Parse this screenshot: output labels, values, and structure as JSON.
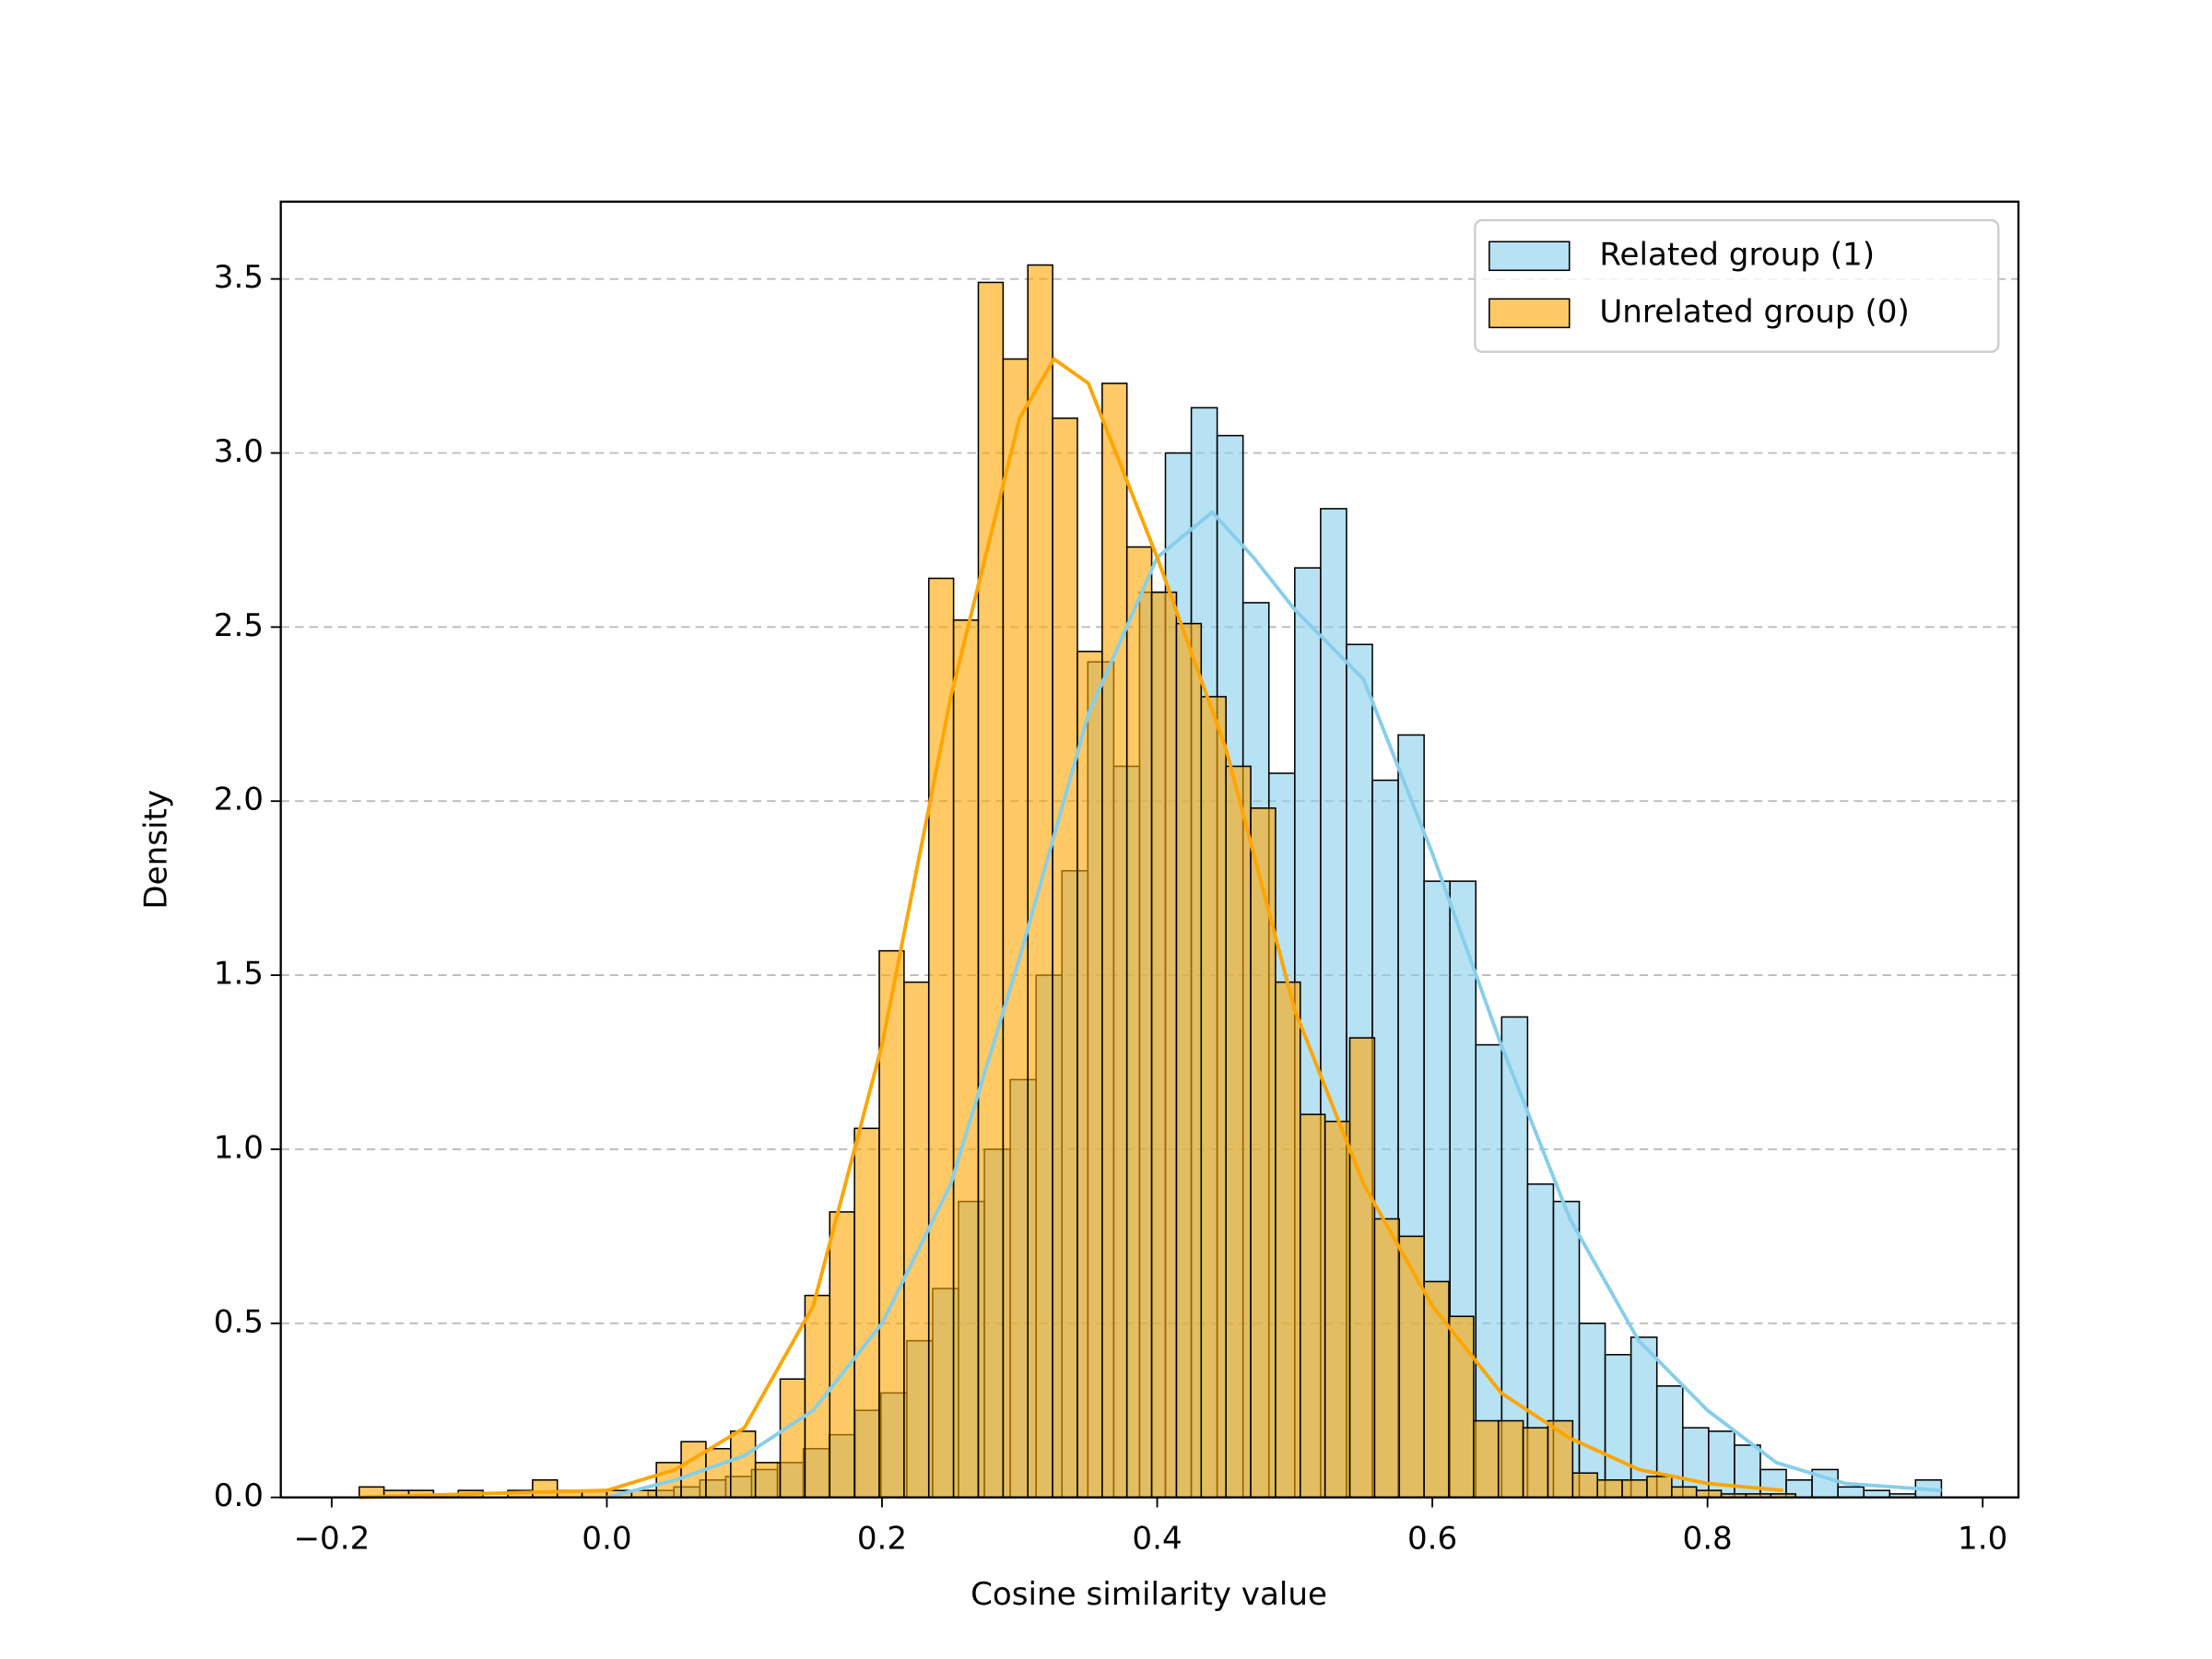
{
  "chart_data": {
    "type": "histogram",
    "xlabel": "Cosine similarity value",
    "ylabel": "Density",
    "xlim": [
      -0.237,
      1.026
    ],
    "ylim": [
      0,
      3.722
    ],
    "xticks": [
      {
        "value": -0.2,
        "label": "−0.2"
      },
      {
        "value": 0,
        "label": "0.0"
      },
      0.2,
      0.4,
      0.6,
      0.8,
      {
        "value": 1,
        "label": "1.0"
      }
    ],
    "yticks": [
      {
        "value": 0,
        "label": "0.0"
      },
      0.5,
      {
        "value": 1,
        "label": "1.0"
      },
      1.5,
      {
        "value": 2,
        "label": "2.0"
      },
      2.5,
      {
        "value": 3,
        "label": "3.0"
      },
      3.5
    ],
    "grid": "y",
    "legend": "upper right",
    "series": [
      {
        "name": "Related group (1)",
        "color": "#87ceeb",
        "line_color": "#87ceeb",
        "bins": [
          0.03,
          0.0488,
          0.0676,
          0.0864,
          0.1052,
          0.124,
          0.1428,
          0.1616,
          0.1804,
          0.1992,
          0.218,
          0.2368,
          0.2556,
          0.2744,
          0.2932,
          0.312,
          0.3308,
          0.3496,
          0.3684,
          0.3872,
          0.406,
          0.4248,
          0.4436,
          0.4624,
          0.4812,
          0.5,
          0.5188,
          0.5376,
          0.5564,
          0.5752,
          0.594,
          0.6128,
          0.6316,
          0.6504,
          0.6692,
          0.688,
          0.7068,
          0.7256,
          0.7444,
          0.7632,
          0.782,
          0.8008,
          0.8196,
          0.8384,
          0.8572,
          0.876,
          0.8948,
          0.9136,
          0.9324,
          0.9512,
          0.97
        ],
        "values": [
          0.02,
          0.03,
          0.05,
          0.06,
          0.08,
          0.1,
          0.14,
          0.18,
          0.25,
          0.3,
          0.45,
          0.6,
          0.85,
          1.0,
          1.2,
          1.5,
          1.8,
          2.4,
          2.1,
          2.6,
          3.0,
          3.13,
          3.05,
          2.57,
          2.08,
          2.67,
          2.84,
          2.45,
          2.06,
          2.19,
          1.77,
          1.77,
          1.3,
          1.38,
          0.9,
          0.85,
          0.5,
          0.41,
          0.46,
          0.32,
          0.2,
          0.19,
          0.15,
          0.08,
          0.05,
          0.08,
          0.03,
          0.02,
          0.01,
          0.05
        ],
        "kde_x": [
          0,
          0.05,
          0.1,
          0.15,
          0.2,
          0.25,
          0.3,
          0.35,
          0.4,
          0.44,
          0.47,
          0.5,
          0.55,
          0.6,
          0.65,
          0.7,
          0.75,
          0.8,
          0.85,
          0.9,
          0.97
        ],
        "kde_y": [
          0,
          0.05,
          0.12,
          0.25,
          0.5,
          0.9,
          1.55,
          2.25,
          2.7,
          2.83,
          2.7,
          2.55,
          2.35,
          1.85,
          1.3,
          0.8,
          0.45,
          0.25,
          0.1,
          0.04,
          0.02
        ]
      },
      {
        "name": "Unrelated group (0)",
        "color": "#ffa500",
        "line_color": "#ffa500",
        "bins": [
          -0.18,
          -0.162,
          -0.144,
          -0.126,
          -0.108,
          -0.09,
          -0.072,
          -0.054,
          -0.036,
          -0.018,
          0,
          0.018,
          0.036,
          0.054,
          0.072,
          0.09,
          0.108,
          0.126,
          0.144,
          0.162,
          0.18,
          0.198,
          0.216,
          0.234,
          0.252,
          0.27,
          0.288,
          0.306,
          0.324,
          0.342,
          0.36,
          0.378,
          0.396,
          0.414,
          0.432,
          0.45,
          0.468,
          0.486,
          0.504,
          0.522,
          0.54,
          0.558,
          0.576,
          0.594,
          0.612,
          0.63,
          0.648,
          0.666,
          0.684,
          0.702,
          0.72,
          0.738,
          0.756,
          0.774,
          0.792,
          0.81,
          0.828,
          0.846,
          0.864
        ],
        "values": [
          0.03,
          0.02,
          0.02,
          0,
          0.02,
          0,
          0.02,
          0.05,
          0.02,
          0.02,
          0.02,
          0.02,
          0.1,
          0.16,
          0.14,
          0.19,
          0.1,
          0.34,
          0.58,
          0.82,
          1.06,
          1.57,
          1.48,
          2.64,
          2.52,
          3.49,
          3.27,
          3.54,
          3.1,
          2.43,
          3.2,
          2.73,
          2.6,
          2.51,
          2.3,
          2.1,
          1.98,
          1.48,
          1.1,
          1.08,
          1.32,
          0.8,
          0.75,
          0.62,
          0.52,
          0.22,
          0.22,
          0.2,
          0.22,
          0.07,
          0.05,
          0.05,
          0.06,
          0.03,
          0.02,
          0.01,
          0.01,
          0.01
        ],
        "kde_x": [
          -0.18,
          -0.1,
          0,
          0.05,
          0.1,
          0.15,
          0.2,
          0.25,
          0.3,
          0.325,
          0.35,
          0.4,
          0.45,
          0.5,
          0.55,
          0.6,
          0.65,
          0.7,
          0.75,
          0.8,
          0.855
        ],
        "kde_y": [
          0,
          0.01,
          0.02,
          0.08,
          0.2,
          0.55,
          1.3,
          2.3,
          3.1,
          3.27,
          3.2,
          2.7,
          2.15,
          1.4,
          0.9,
          0.55,
          0.3,
          0.17,
          0.08,
          0.04,
          0.02
        ]
      }
    ]
  }
}
